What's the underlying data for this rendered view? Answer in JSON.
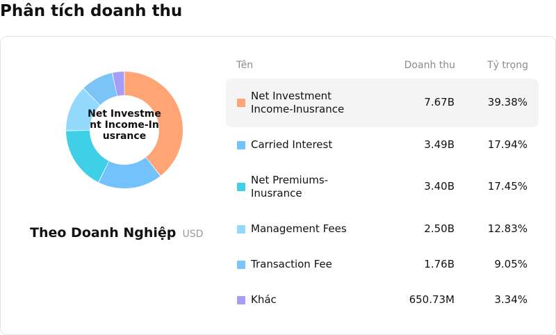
{
  "page": {
    "title": "Phân tích doanh thu"
  },
  "chart": {
    "center_label": "Net Investment Income-Inusrance",
    "subtitle": "Theo Doanh Nghiệp",
    "unit": "USD"
  },
  "table": {
    "headers": {
      "name": "Tên",
      "revenue": "Doanh thu",
      "share": "Tỷ trọng"
    }
  },
  "chart_data": {
    "type": "pie",
    "title": "",
    "categories": [
      "Net Investment Income-Inusrance",
      "Carried Interest",
      "Net Premiums-Inusrance",
      "Management Fees",
      "Transaction Fee",
      "Khác"
    ],
    "values": [
      7.67,
      3.49,
      3.4,
      2.5,
      1.76,
      0.65073
    ],
    "revenue_labels": [
      "7.67B",
      "3.49B",
      "3.40B",
      "2.50B",
      "1.76B",
      "650.73M"
    ],
    "share_labels": [
      "39.38%",
      "17.94%",
      "17.45%",
      "12.83%",
      "9.05%",
      "3.34%"
    ],
    "shares": [
      39.38,
      17.94,
      17.45,
      12.83,
      9.05,
      3.34
    ],
    "colors": [
      "#FFA474",
      "#73C2FB",
      "#3FD0E8",
      "#93D9FB",
      "#7BC4F8",
      "#A59DF7"
    ],
    "highlighted_index": 0
  }
}
